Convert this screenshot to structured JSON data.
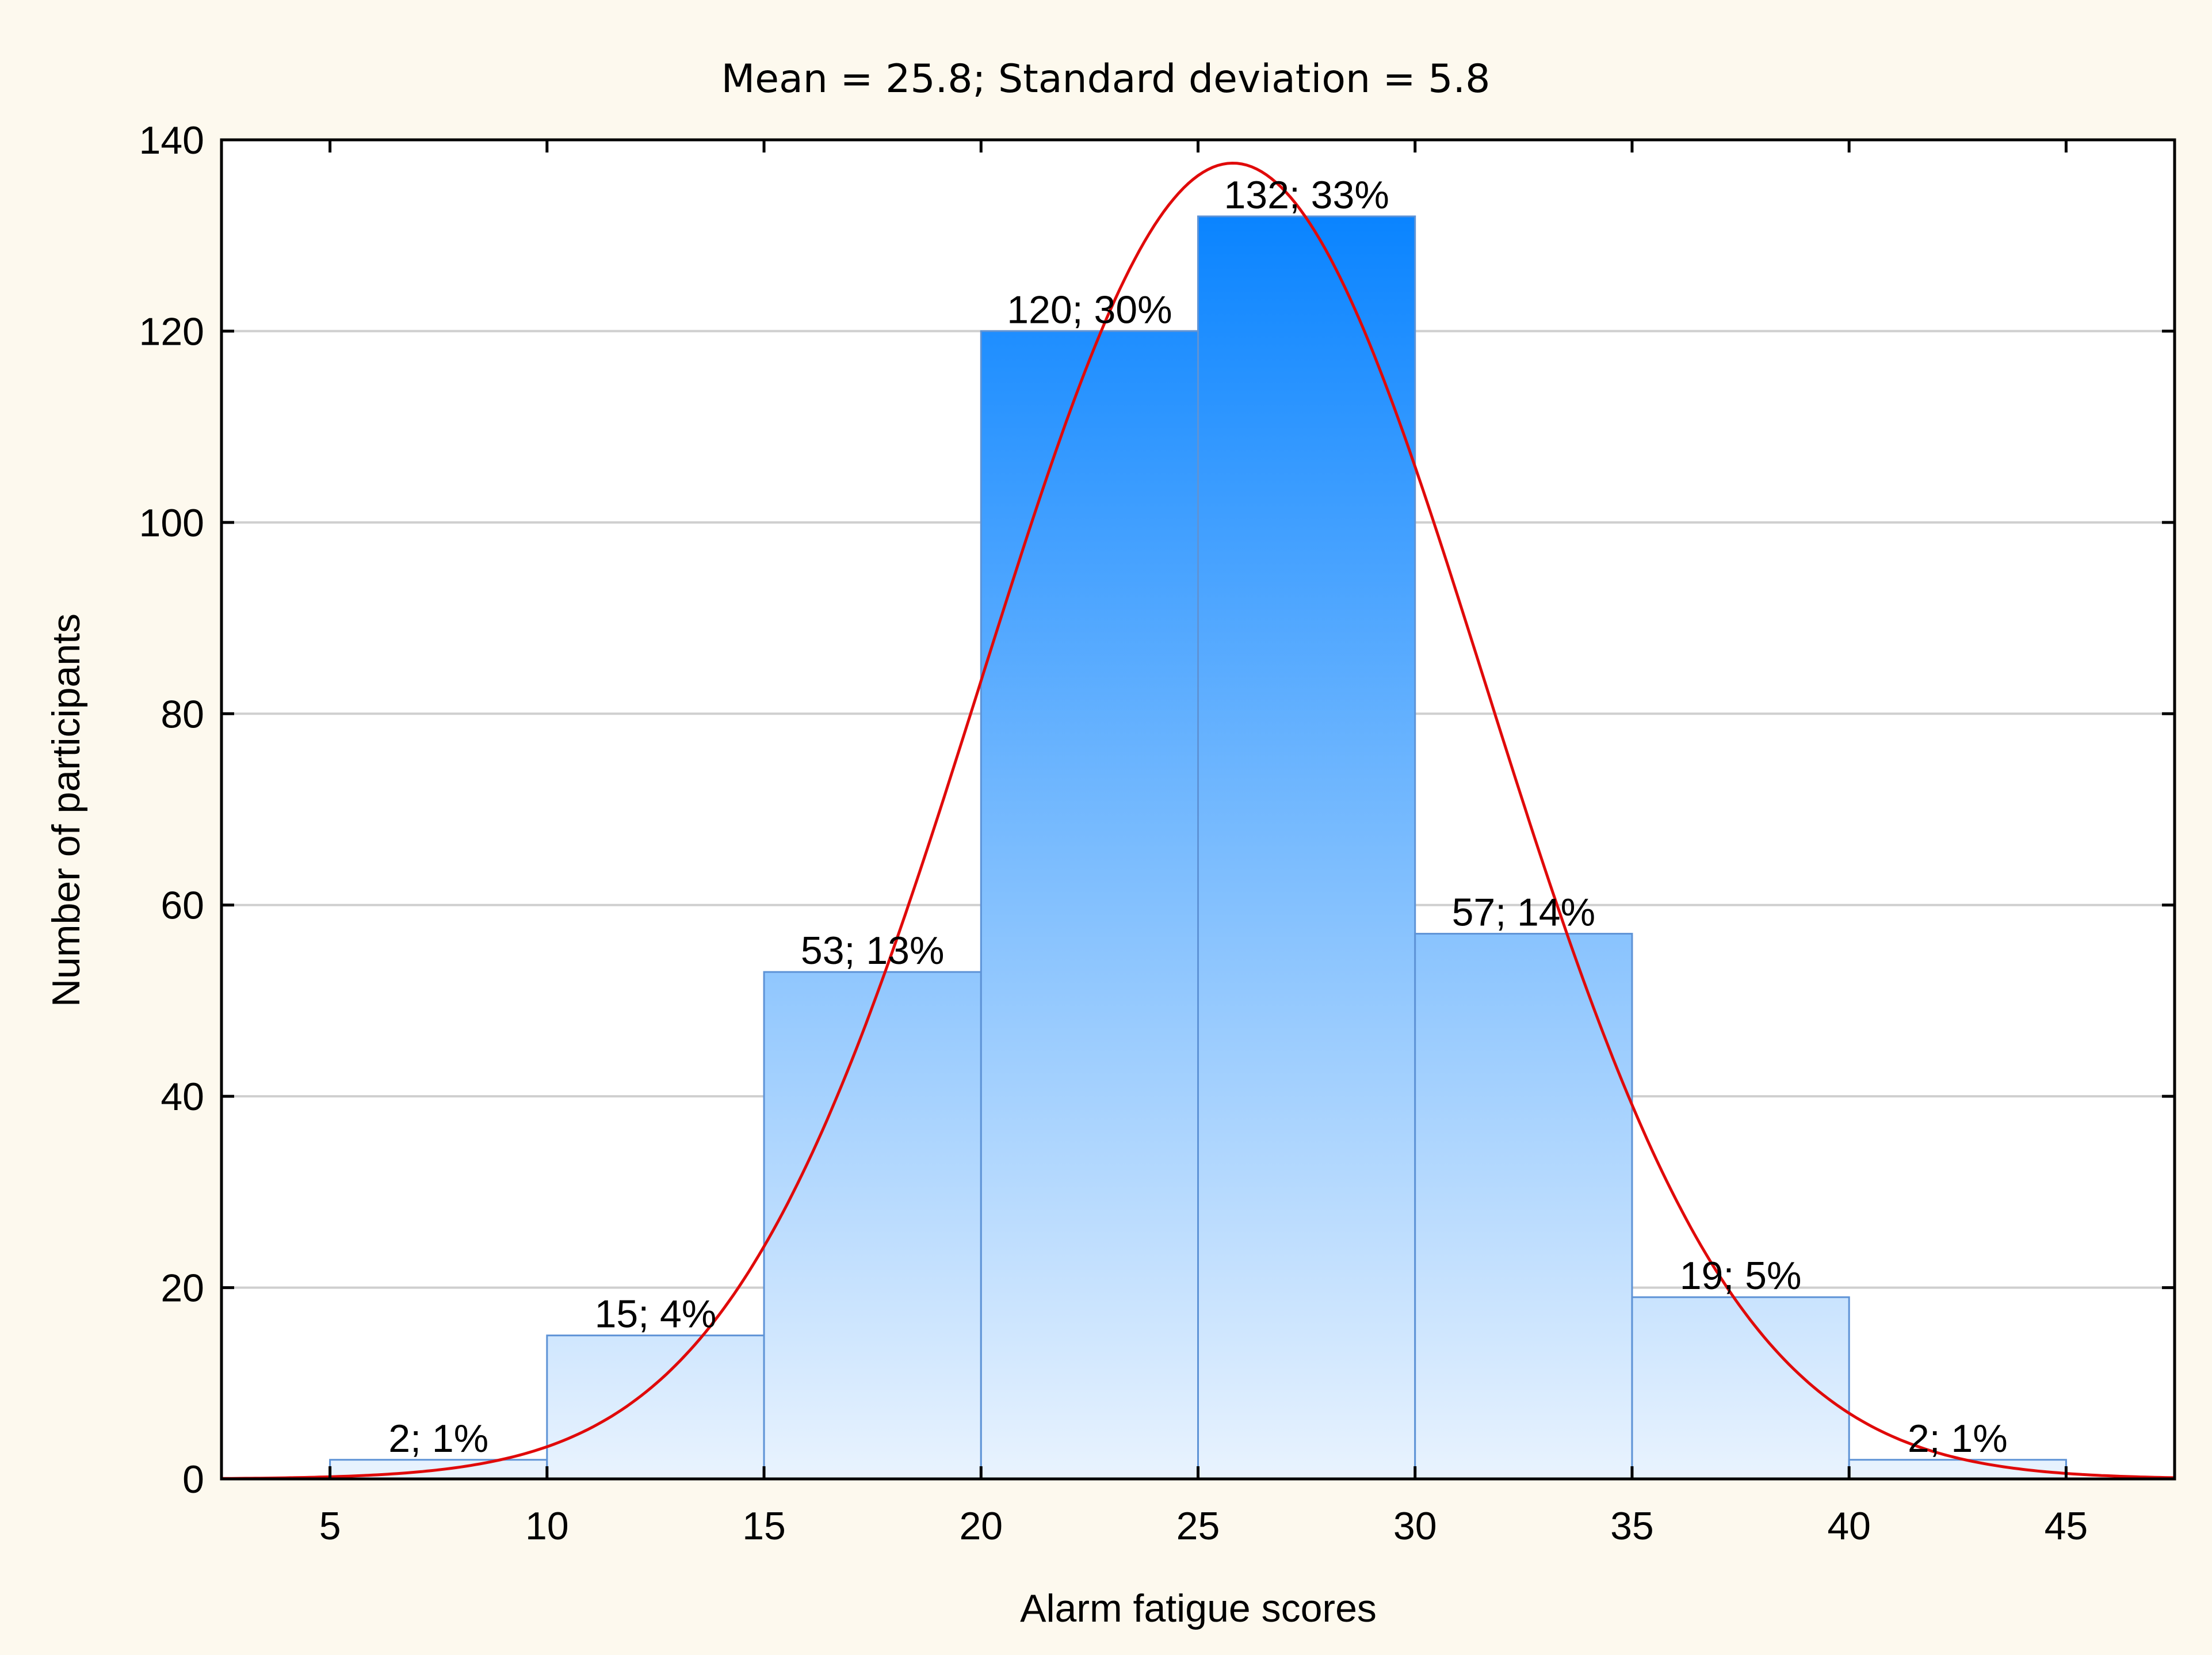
{
  "chart_data": {
    "type": "bar",
    "subtype": "histogram-with-normal-curve",
    "title": "Mean = 25.8; Standard deviation = 5.8",
    "xlabel": "Alarm fatigue scores",
    "ylabel": "Number of participants",
    "xlim": [
      2.5,
      47.5
    ],
    "ylim": [
      0,
      140
    ],
    "x_ticks": [
      5,
      10,
      15,
      20,
      25,
      30,
      35,
      40,
      45
    ],
    "y_ticks": [
      0,
      20,
      40,
      60,
      80,
      100,
      120,
      140
    ],
    "grid": "horizontal",
    "bins": [
      {
        "start": 5,
        "end": 10,
        "value": 2,
        "label": "2; 1%"
      },
      {
        "start": 10,
        "end": 15,
        "value": 15,
        "label": "15; 4%"
      },
      {
        "start": 15,
        "end": 20,
        "value": 53,
        "label": "53; 13%"
      },
      {
        "start": 20,
        "end": 25,
        "value": 120,
        "label": "120; 30%"
      },
      {
        "start": 25,
        "end": 30,
        "value": 132,
        "label": "132; 33%"
      },
      {
        "start": 30,
        "end": 35,
        "value": 57,
        "label": "57; 14%"
      },
      {
        "start": 35,
        "end": 40,
        "value": 19,
        "label": "19; 5%"
      },
      {
        "start": 40,
        "end": 45,
        "value": 2,
        "label": "2; 1%"
      }
    ],
    "normal_curve": {
      "mean": 25.8,
      "sd": 5.8,
      "n": 400,
      "bin_width": 5
    },
    "colors": {
      "bar_top": "#0a84ff",
      "bar_bottom": "#e9f3fe",
      "bar_edge": "#5e93d6",
      "curve": "#e00a0a",
      "grid": "#cfcfcf",
      "background": "#fdf9ee",
      "panel": "#ffffff"
    }
  }
}
